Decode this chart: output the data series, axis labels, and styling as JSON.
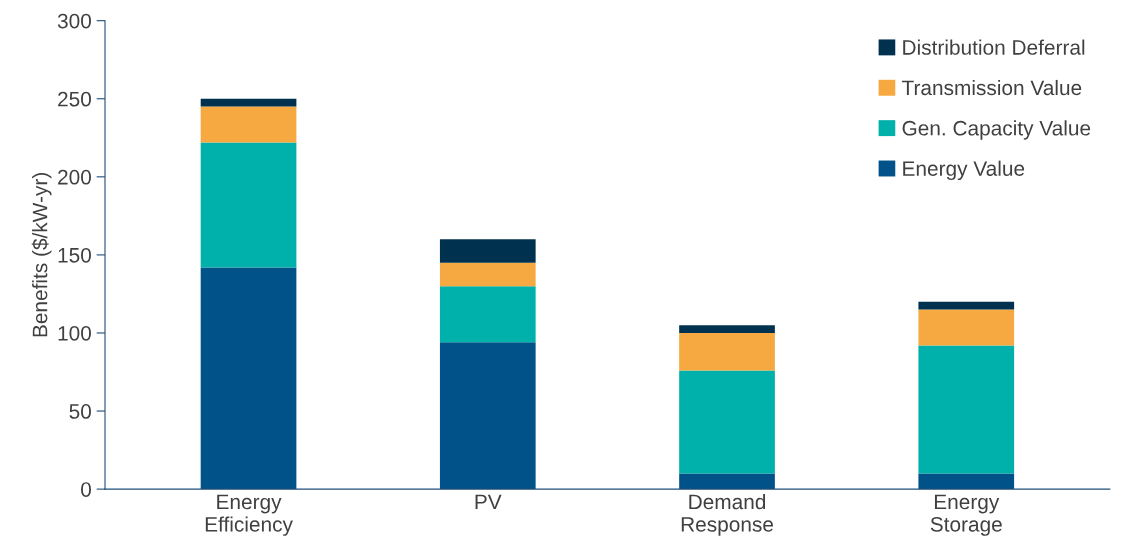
{
  "chart_data": {
    "type": "bar",
    "stacked": true,
    "ylabel": "Benefits ($/kW-yr)",
    "categories": [
      "Energy\nEfficiency",
      "PV",
      "Demand\nResponse",
      "Energy\nStorage"
    ],
    "series": [
      {
        "name": "Energy Value",
        "color": "#005288",
        "values": [
          142,
          94,
          10,
          10
        ]
      },
      {
        "name": "Gen. Capacity Value",
        "color": "#00b0aa",
        "values": [
          80,
          36,
          66,
          82
        ]
      },
      {
        "name": "Transmission Value",
        "color": "#f5a940",
        "values": [
          23,
          15,
          24,
          23
        ]
      },
      {
        "name": "Distribution Deferral",
        "color": "#00324f",
        "values": [
          5,
          15,
          5,
          5
        ]
      }
    ],
    "ylim": [
      0,
      300
    ],
    "yticks": [
      0,
      50,
      100,
      150,
      200,
      250,
      300
    ],
    "grid": false,
    "legend": "top right"
  }
}
